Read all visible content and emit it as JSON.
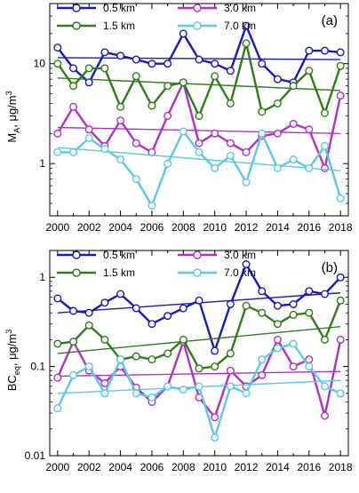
{
  "chart_data": [
    {
      "type": "line",
      "panel_label": "(a)",
      "title": "",
      "xlabel": "",
      "ylabel_main": "M",
      "ylabel_sub": "A",
      "ylabel_unit": ", μg/m",
      "ylabel_sup": "3",
      "yscale": "log",
      "ylim": [
        0.3,
        40
      ],
      "xlim": [
        1999.5,
        2018.5
      ],
      "x": [
        2000,
        2001,
        2002,
        2003,
        2004,
        2005,
        2006,
        2007,
        2008,
        2009,
        2010,
        2011,
        2012,
        2013,
        2014,
        2015,
        2016,
        2017,
        2018
      ],
      "x_ticks": [
        2000,
        2002,
        2004,
        2006,
        2008,
        2010,
        2012,
        2014,
        2016,
        2018
      ],
      "y_ticks": [
        1,
        10
      ],
      "y_tick_labels": [
        "1",
        "10"
      ],
      "legend_position": "top",
      "series": [
        {
          "name": "0.5 km",
          "color": "#1a1ab8",
          "values": [
            14.5,
            9.0,
            6.5,
            13.0,
            12.0,
            11.0,
            10.0,
            10.0,
            20.0,
            11.0,
            10.0,
            8.5,
            24.0,
            10.0,
            7.0,
            6.5,
            13.5,
            13.5,
            13.0
          ],
          "trend": [
            11.5,
            11.0
          ]
        },
        {
          "name": "3.0 km",
          "color": "#b030c8",
          "values": [
            2.0,
            3.7,
            2.2,
            1.5,
            2.7,
            1.6,
            1.3,
            3.0,
            6.5,
            1.6,
            2.0,
            1.6,
            1.3,
            1.9,
            2.0,
            2.5,
            2.2,
            0.9,
            4.8
          ],
          "trend": [
            2.3,
            2.0
          ]
        },
        {
          "name": "1.5 km",
          "color": "#2e7d18",
          "values": [
            10.0,
            6.0,
            9.0,
            9.0,
            3.7,
            7.5,
            3.8,
            6.0,
            6.5,
            3.0,
            7.5,
            4.0,
            16.0,
            3.3,
            4.0,
            6.0,
            8.5,
            3.2,
            9.5
          ],
          "trend": [
            7.2,
            5.4
          ]
        },
        {
          "name": "7.0 km",
          "color": "#5cc8e8",
          "values": [
            1.3,
            1.3,
            1.8,
            1.4,
            1.1,
            0.7,
            0.38,
            1.0,
            2.1,
            1.3,
            0.9,
            1.2,
            0.65,
            2.0,
            0.9,
            1.1,
            0.9,
            1.5,
            0.45
          ],
          "trend": [
            1.45,
            0.85
          ]
        }
      ]
    },
    {
      "type": "line",
      "panel_label": "(b)",
      "title": "",
      "xlabel": "",
      "ylabel_main": "BC",
      "ylabel_sub": "eq",
      "ylabel_unit": ", μg/m",
      "ylabel_sup": "3",
      "yscale": "log",
      "ylim": [
        0.01,
        2
      ],
      "xlim": [
        1999.5,
        2018.5
      ],
      "x": [
        2000,
        2001,
        2002,
        2003,
        2004,
        2005,
        2006,
        2007,
        2008,
        2009,
        2010,
        2011,
        2012,
        2013,
        2014,
        2015,
        2016,
        2017,
        2018
      ],
      "x_ticks": [
        2000,
        2002,
        2004,
        2006,
        2008,
        2010,
        2012,
        2014,
        2016,
        2018
      ],
      "y_ticks": [
        0.01,
        0.1,
        1
      ],
      "y_tick_labels": [
        "0.01",
        "0.1",
        "1"
      ],
      "legend_position": "top",
      "series": [
        {
          "name": "0.5 km",
          "color": "#1a1ab8",
          "values": [
            0.58,
            0.42,
            0.4,
            0.52,
            0.65,
            0.45,
            0.3,
            0.37,
            0.45,
            0.55,
            0.15,
            0.5,
            1.4,
            0.7,
            0.48,
            0.5,
            0.7,
            0.65,
            1.0
          ],
          "trend": [
            0.4,
            0.67
          ]
        },
        {
          "name": "3.0 km",
          "color": "#b030c8",
          "values": [
            0.075,
            0.19,
            0.09,
            0.065,
            0.1,
            0.058,
            0.04,
            0.06,
            0.19,
            0.045,
            0.027,
            0.09,
            0.06,
            0.08,
            0.2,
            0.1,
            0.12,
            0.028,
            0.2
          ],
          "trend": [
            0.078,
            0.088
          ]
        },
        {
          "name": "1.5 km",
          "color": "#2e7d18",
          "values": [
            0.18,
            0.19,
            0.29,
            0.2,
            0.12,
            0.13,
            0.12,
            0.14,
            0.2,
            0.095,
            0.1,
            0.14,
            0.48,
            0.4,
            0.3,
            0.38,
            0.4,
            0.2,
            0.55
          ],
          "trend": [
            0.14,
            0.28
          ]
        },
        {
          "name": "7.0 km",
          "color": "#5cc8e8",
          "values": [
            0.034,
            0.08,
            0.1,
            0.05,
            0.12,
            0.05,
            0.045,
            0.06,
            0.055,
            0.06,
            0.016,
            0.06,
            0.05,
            0.12,
            0.16,
            0.18,
            0.1,
            0.06,
            0.05
          ],
          "trend": [
            0.05,
            0.07
          ]
        }
      ]
    }
  ]
}
